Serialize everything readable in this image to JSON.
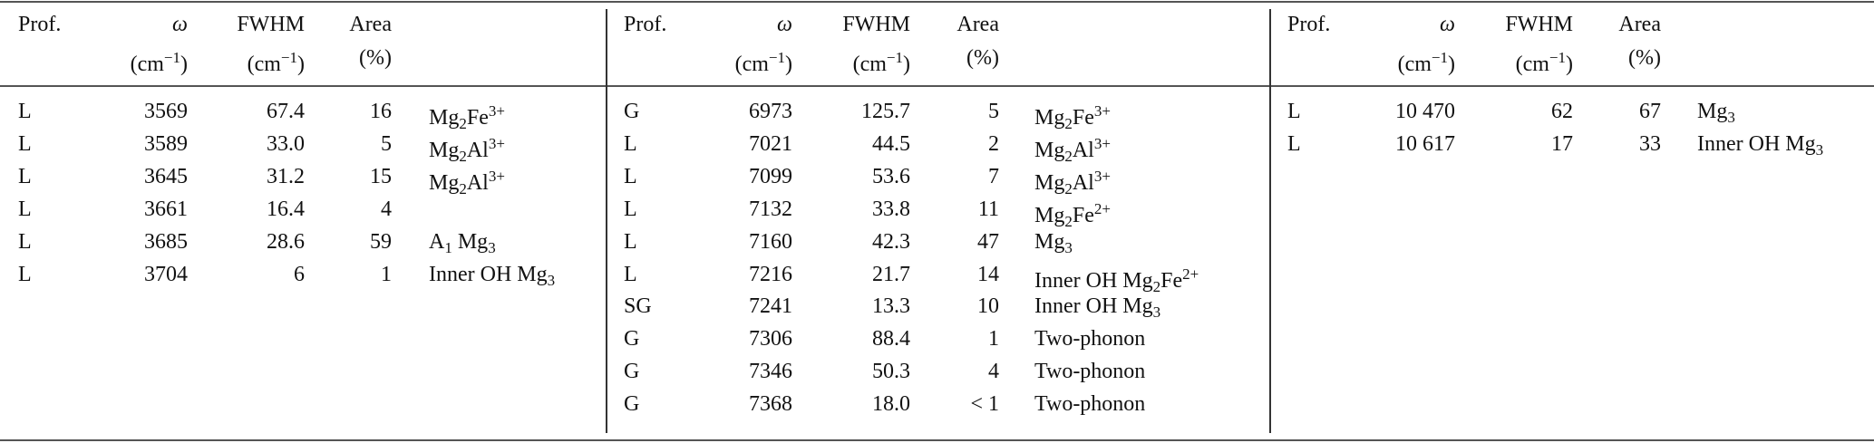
{
  "tables": [
    {
      "header": [
        [
          [
            {
              "text": "Prof."
            }
          ]
        ],
        [
          [
            {
              "i": "ω"
            }
          ],
          [
            {
              "text": "(cm"
            },
            {
              "sup": "−1"
            },
            {
              "text": ")"
            }
          ]
        ],
        [
          [
            {
              "text": "FWHM"
            }
          ],
          [
            {
              "text": "(cm"
            },
            {
              "sup": "−1"
            },
            {
              "text": ")"
            }
          ]
        ],
        [
          [
            {
              "text": "Area"
            }
          ],
          [
            {
              "text": "(%)"
            }
          ]
        ]
      ],
      "rows": [
        [
          "L",
          "3569",
          "67.4",
          "16",
          [
            {
              "text": "Mg"
            },
            {
              "sub": "2"
            },
            {
              "text": "Fe"
            },
            {
              "sup": "3+"
            }
          ]
        ],
        [
          "L",
          "3589",
          "33.0",
          "5",
          [
            {
              "text": "Mg"
            },
            {
              "sub": "2"
            },
            {
              "text": "Al"
            },
            {
              "sup": "3+"
            }
          ]
        ],
        [
          "L",
          "3645",
          "31.2",
          "15",
          [
            {
              "text": "Mg"
            },
            {
              "sub": "2"
            },
            {
              "text": "Al"
            },
            {
              "sup": "3+"
            }
          ]
        ],
        [
          "L",
          "3661",
          "16.4",
          "4",
          null
        ],
        [
          "L",
          "3685",
          "28.6",
          "59",
          [
            {
              "text": "A"
            },
            {
              "sub": "1"
            },
            {
              "text": " Mg"
            },
            {
              "sub": "3"
            }
          ]
        ],
        [
          "L",
          "3704",
          "6",
          "1",
          [
            {
              "text": "Inner OH Mg"
            },
            {
              "sub": "3"
            }
          ]
        ]
      ]
    },
    {
      "header": [
        [
          [
            {
              "text": "Prof."
            }
          ]
        ],
        [
          [
            {
              "i": "ω"
            }
          ],
          [
            {
              "text": "(cm"
            },
            {
              "sup": "−1"
            },
            {
              "text": ")"
            }
          ]
        ],
        [
          [
            {
              "text": "FWHM"
            }
          ],
          [
            {
              "text": "(cm"
            },
            {
              "sup": "−1"
            },
            {
              "text": ")"
            }
          ]
        ],
        [
          [
            {
              "text": "Area"
            }
          ],
          [
            {
              "text": "(%)"
            }
          ]
        ]
      ],
      "rows": [
        [
          "G",
          "6973",
          "125.7",
          "5",
          [
            {
              "text": "Mg"
            },
            {
              "sub": "2"
            },
            {
              "text": "Fe"
            },
            {
              "sup": "3+"
            }
          ]
        ],
        [
          "L",
          "7021",
          "44.5",
          "2",
          [
            {
              "text": "Mg"
            },
            {
              "sub": "2"
            },
            {
              "text": "Al"
            },
            {
              "sup": "3+"
            }
          ]
        ],
        [
          "L",
          "7099",
          "53.6",
          "7",
          [
            {
              "text": "Mg"
            },
            {
              "sub": "2"
            },
            {
              "text": "Al"
            },
            {
              "sup": "3+"
            }
          ]
        ],
        [
          "L",
          "7132",
          "33.8",
          "11",
          [
            {
              "text": "Mg"
            },
            {
              "sub": "2"
            },
            {
              "text": "Fe"
            },
            {
              "sup": "2+"
            }
          ]
        ],
        [
          "L",
          "7160",
          "42.3",
          "47",
          [
            {
              "text": "Mg"
            },
            {
              "sub": "3"
            }
          ]
        ],
        [
          "L",
          "7216",
          "21.7",
          "14",
          [
            {
              "text": "Inner OH Mg"
            },
            {
              "sub": "2"
            },
            {
              "text": "Fe"
            },
            {
              "sup": "2+"
            }
          ]
        ],
        [
          "SG",
          "7241",
          "13.3",
          "10",
          [
            {
              "text": "Inner OH Mg"
            },
            {
              "sub": "3"
            }
          ]
        ],
        [
          "G",
          "7306",
          "88.4",
          "1",
          [
            {
              "text": "Two-phonon"
            }
          ]
        ],
        [
          "G",
          "7346",
          "50.3",
          "4",
          [
            {
              "text": "Two-phonon"
            }
          ]
        ],
        [
          "G",
          "7368",
          "18.0",
          "< 1",
          [
            {
              "text": "Two-phonon"
            }
          ]
        ]
      ]
    },
    {
      "header": [
        [
          [
            {
              "text": "Prof."
            }
          ]
        ],
        [
          [
            {
              "i": "ω"
            }
          ],
          [
            {
              "text": "(cm"
            },
            {
              "sup": "−1"
            },
            {
              "text": ")"
            }
          ]
        ],
        [
          [
            {
              "text": "FWHM"
            }
          ],
          [
            {
              "text": "(cm"
            },
            {
              "sup": "−1"
            },
            {
              "text": ")"
            }
          ]
        ],
        [
          [
            {
              "text": "Area"
            }
          ],
          [
            {
              "text": "(%)"
            }
          ]
        ]
      ],
      "rows": [
        [
          "L",
          "10 470",
          "62",
          "67",
          [
            {
              "text": "Mg"
            },
            {
              "sub": "3"
            }
          ]
        ],
        [
          "L",
          "10 617",
          "17",
          "33",
          [
            {
              "text": "Inner OH Mg"
            },
            {
              "sub": "3"
            }
          ]
        ]
      ]
    }
  ]
}
